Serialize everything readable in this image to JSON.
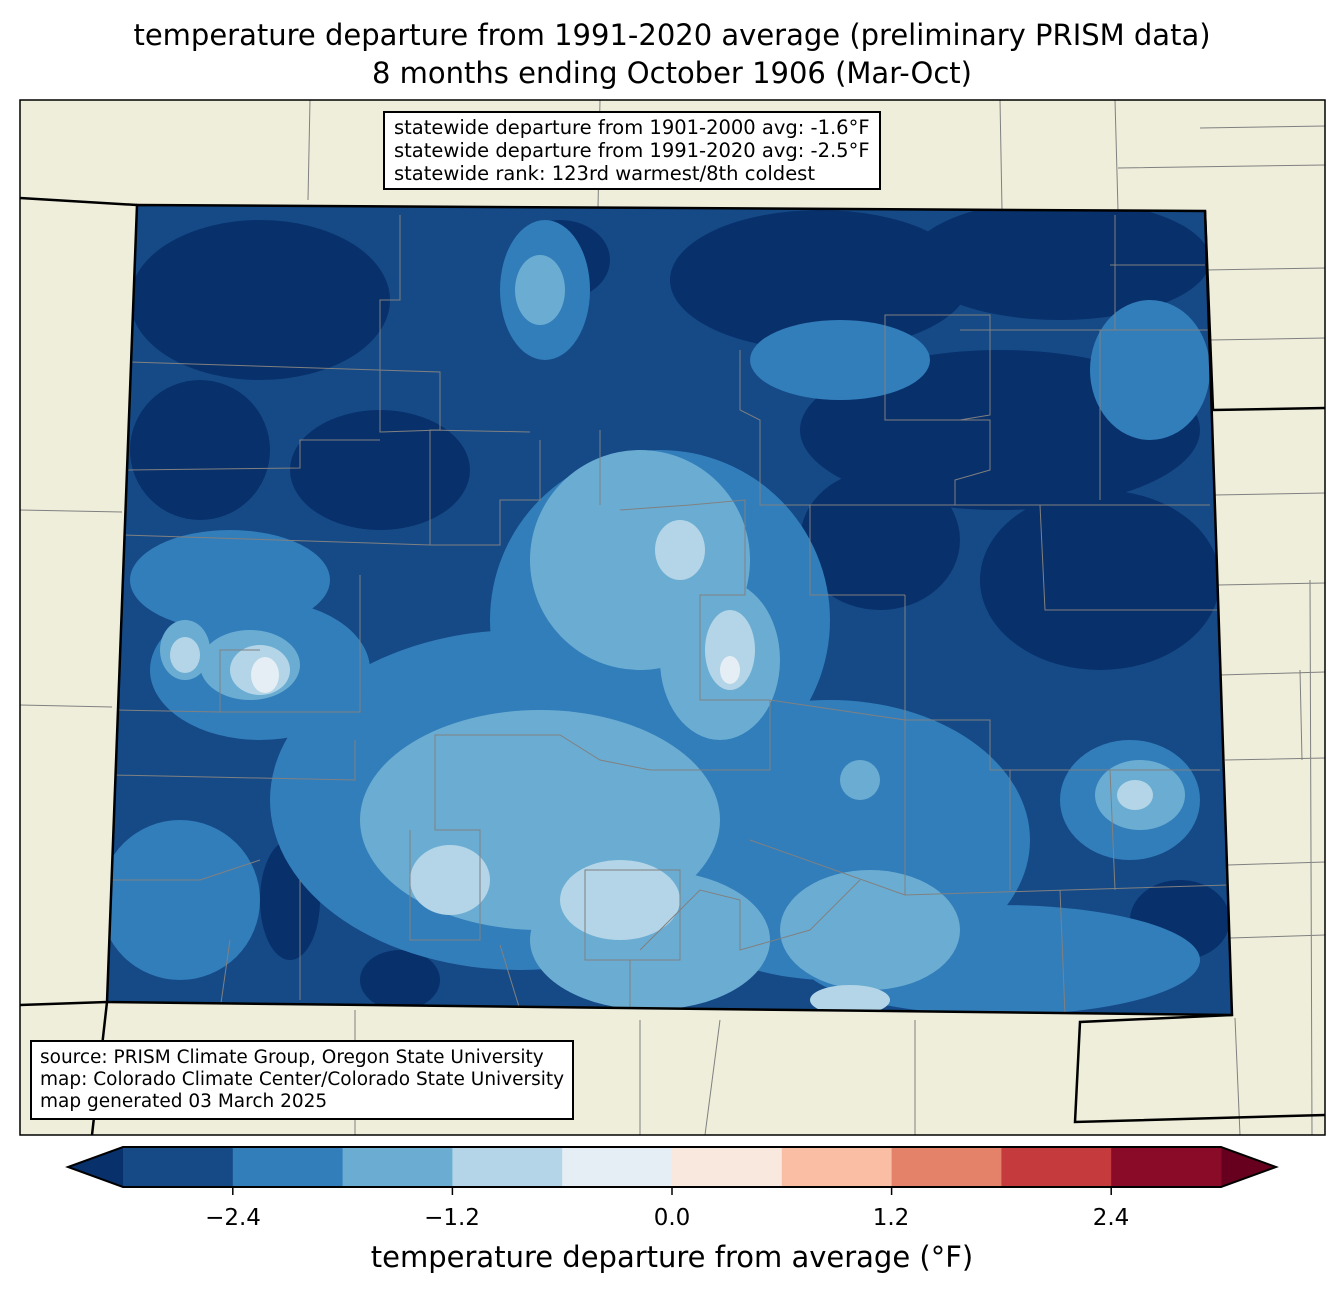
{
  "title": {
    "line1": "temperature departure from 1991-2020 average (preliminary PRISM data)",
    "line2": "8 months ending October 1906 (Mar-Oct)"
  },
  "stats": {
    "line1": "statewide departure from 1901-2000 avg: -1.6°F",
    "line2": "statewide departure from 1991-2020 avg: -2.5°F",
    "line3": "statewide rank: 123rd warmest/8th coldest"
  },
  "credits": {
    "line1": "source: PRISM Climate Group, Oregon State University",
    "line2": "map: Colorado Climate Center/Colorado State University",
    "line3": "map generated 03 March 2025"
  },
  "colorbar": {
    "label": "temperature departure from average (°F)",
    "min": -3.0,
    "max": 3.0,
    "step": 0.6,
    "under_color": "#08306b",
    "over_color": "#67001f",
    "colors": [
      "#154a87",
      "#327ebb",
      "#6badd2",
      "#b3d5e7",
      "#e5eef4",
      "#f9e8de",
      "#f9bea4",
      "#e48169",
      "#c53a3c",
      "#8a0b27"
    ],
    "ticks": [
      "−2.4",
      "−1.2",
      "0.0",
      "1.2",
      "2.4"
    ],
    "tick_values": [
      -2.4,
      -1.2,
      0.0,
      1.2,
      2.4
    ]
  },
  "map_colors": {
    "land": "#efeedb",
    "county_line": "#808080"
  }
}
